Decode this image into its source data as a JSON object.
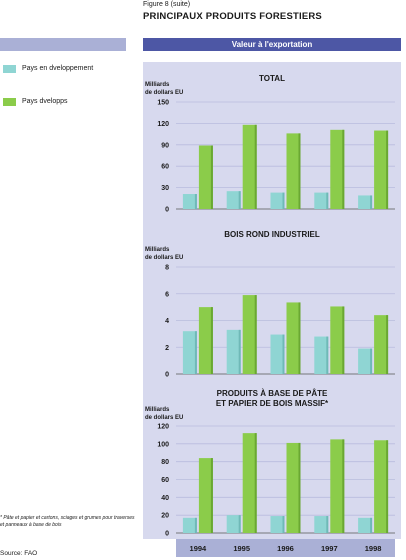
{
  "figure": {
    "label": "Figure 8 (suite)",
    "title": "PRINCIPAUX PRODUITS FORESTIERS",
    "header": "Valeur à l'exportation"
  },
  "legend": [
    {
      "label": "Pays en dveloppement",
      "color": "#8fd5d3"
    },
    {
      "label": "Pays dvelopps",
      "color": "#8bcc4a"
    }
  ],
  "footnote": "* Pâte et papier et cartons, sciages et grumes pour traverses et panneaux à base de bois",
  "source": "Source: FAO",
  "chart_data": [
    {
      "type": "bar",
      "title": "TOTAL",
      "ylabel": "Milliards de dollars EU",
      "ylim": [
        0,
        150
      ],
      "yticks": [
        0,
        30,
        60,
        90,
        120,
        150
      ],
      "categories": [
        "1994",
        "1995",
        "1996",
        "1997",
        "1998"
      ],
      "series": [
        {
          "name": "Pays en dveloppement",
          "values": [
            21,
            25,
            23,
            23,
            19
          ]
        },
        {
          "name": "Pays dvelopps",
          "values": [
            89,
            118,
            106,
            111,
            110
          ]
        }
      ]
    },
    {
      "type": "bar",
      "title": "BOIS ROND INDUSTRIEL",
      "ylabel": "Milliards de dollars EU",
      "ylim": [
        0,
        8
      ],
      "yticks": [
        0,
        2,
        4,
        6,
        8
      ],
      "categories": [
        "1994",
        "1995",
        "1996",
        "1997",
        "1998"
      ],
      "series": [
        {
          "name": "Pays en dveloppement",
          "values": [
            3.2,
            3.3,
            2.95,
            2.8,
            1.9
          ]
        },
        {
          "name": "Pays dvelopps",
          "values": [
            5.0,
            5.9,
            5.35,
            5.05,
            4.4
          ]
        }
      ]
    },
    {
      "type": "bar",
      "title": "PRODUITS À BASE DE PÂTE ET PAPIER DE BOIS MASSIF*",
      "ylabel": "Milliards de dollars EU",
      "ylim": [
        0,
        120
      ],
      "yticks": [
        0,
        20,
        40,
        60,
        80,
        100,
        120
      ],
      "categories": [
        "1994",
        "1995",
        "1996",
        "1997",
        "1998"
      ],
      "series": [
        {
          "name": "Pays en dveloppement",
          "values": [
            17,
            20,
            19,
            19,
            17
          ]
        },
        {
          "name": "Pays dvelopps",
          "values": [
            84,
            112,
            101,
            105,
            104
          ]
        }
      ]
    }
  ]
}
